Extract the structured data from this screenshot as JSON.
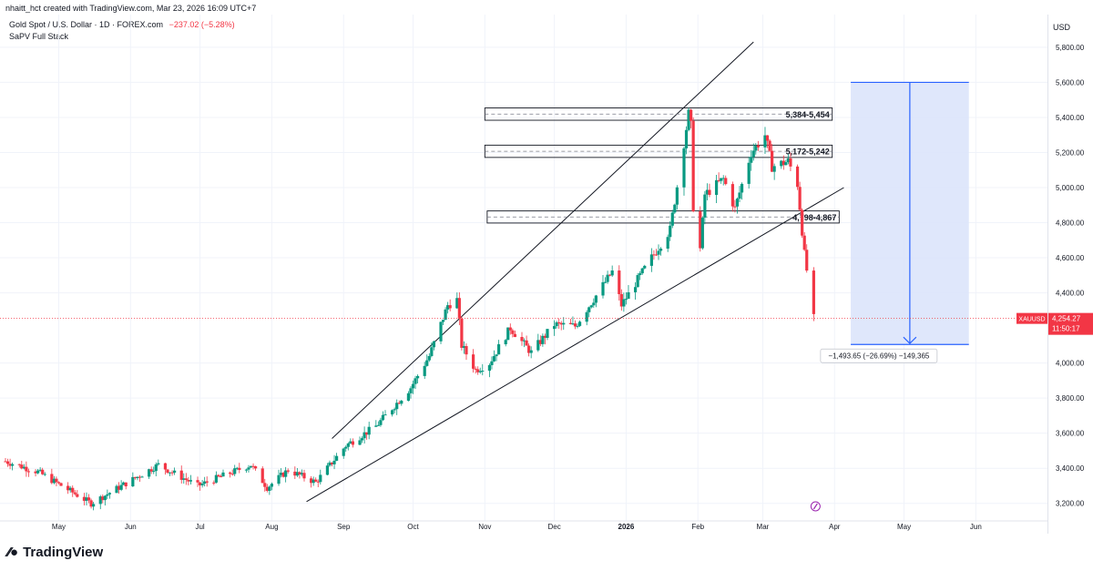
{
  "header": {
    "credit": "nhaitt_hct created with TradingView.com, Mar 23, 2026 16:09 UTC+7",
    "symbol": "Gold Spot / U.S. Dollar · 1D · FOREX.com",
    "change": "−237.02 (−5.28%)",
    "indicator": "SaPV Full Stack"
  },
  "axis": {
    "currency": "USD"
  },
  "footer": {
    "brand": "TradingView"
  },
  "colors": {
    "up": "#089981",
    "down": "#f23645",
    "measure_fill": "#dbe4fb",
    "measure_line": "#2962ff"
  },
  "chart_data": {
    "type": "candlestick",
    "title": "Gold Spot / U.S. Dollar · 1D · FOREX.com",
    "ylabel": "USD",
    "ylim": [
      3100,
      5950
    ],
    "y_ticks": [
      {
        "value": 5800,
        "label": "5,800.00"
      },
      {
        "value": 5600,
        "label": "5,600.00"
      },
      {
        "value": 5400,
        "label": "5,400.00"
      },
      {
        "value": 5200,
        "label": "5,200.00"
      },
      {
        "value": 5000,
        "label": "5,000.00"
      },
      {
        "value": 4800,
        "label": "4,800.00"
      },
      {
        "value": 4600,
        "label": "4,600.00"
      },
      {
        "value": 4400,
        "label": "4,400.00"
      },
      {
        "value": 4000,
        "label": "4,000.00"
      },
      {
        "value": 3800,
        "label": "3,800.00"
      },
      {
        "value": 3600,
        "label": "3,600.00"
      },
      {
        "value": 3400,
        "label": "3,400.00"
      },
      {
        "value": 3200,
        "label": "3,200.00"
      }
    ],
    "x_ticks": [
      {
        "date": "2025-05-01",
        "label": "May"
      },
      {
        "date": "2025-06-01",
        "label": "Jun"
      },
      {
        "date": "2025-07-01",
        "label": "Jul"
      },
      {
        "date": "2025-08-01",
        "label": "Aug"
      },
      {
        "date": "2025-09-01",
        "label": "Sep"
      },
      {
        "date": "2025-10-01",
        "label": "Oct"
      },
      {
        "date": "2025-11-01",
        "label": "Nov"
      },
      {
        "date": "2025-12-01",
        "label": "Dec"
      },
      {
        "date": "2026-01-01",
        "label": "2026"
      },
      {
        "date": "2026-02-01",
        "label": "Feb"
      },
      {
        "date": "2026-03-01",
        "label": "Mar"
      },
      {
        "date": "2026-04-01",
        "label": "Apr"
      },
      {
        "date": "2026-05-01",
        "label": "May"
      },
      {
        "date": "2026-06-01",
        "label": "Jun"
      }
    ],
    "xlim": [
      "2025-04-08",
      "2026-06-28"
    ],
    "price_path": [
      [
        "2025-04-08",
        3440
      ],
      [
        "2025-04-22",
        3380
      ],
      [
        "2025-05-15",
        3200
      ],
      [
        "2025-06-13",
        3420
      ],
      [
        "2025-06-30",
        3300
      ],
      [
        "2025-07-23",
        3420
      ],
      [
        "2025-07-30",
        3290
      ],
      [
        "2025-08-08",
        3390
      ],
      [
        "2025-08-20",
        3320
      ],
      [
        "2025-09-02",
        3530
      ],
      [
        "2025-09-15",
        3640
      ],
      [
        "2025-09-30",
        3860
      ],
      [
        "2025-10-08",
        4040
      ],
      [
        "2025-10-16",
        4330
      ],
      [
        "2025-10-20",
        4360
      ],
      [
        "2025-10-22",
        4100
      ],
      [
        "2025-10-28",
        3960
      ],
      [
        "2025-11-03",
        4000
      ],
      [
        "2025-11-12",
        4200
      ],
      [
        "2025-11-21",
        4060
      ],
      [
        "2025-12-01",
        4220
      ],
      [
        "2025-12-10",
        4210
      ],
      [
        "2025-12-26",
        4520
      ],
      [
        "2025-12-30",
        4330
      ],
      [
        "2026-01-12",
        4600
      ],
      [
        "2026-01-20",
        4760
      ],
      [
        "2026-01-28",
        5420
      ],
      [
        "2026-01-29",
        5350
      ],
      [
        "2026-01-30",
        4890
      ],
      [
        "2026-02-02",
        4650
      ],
      [
        "2026-02-04",
        4960
      ],
      [
        "2026-02-12",
        5050
      ],
      [
        "2026-02-17",
        4880
      ],
      [
        "2026-02-24",
        5200
      ],
      [
        "2026-03-02",
        5300
      ],
      [
        "2026-03-05",
        5120
      ],
      [
        "2026-03-12",
        5150
      ],
      [
        "2026-03-16",
        5020
      ],
      [
        "2026-03-19",
        4620
      ],
      [
        "2026-03-23",
        4254
      ]
    ],
    "zones": [
      {
        "label": "5,384-5,454",
        "low": 5384,
        "high": 5454,
        "from": "2025-11-01",
        "to": "2026-03-31"
      },
      {
        "label": "5,172-5,242",
        "low": 5172,
        "high": 5242,
        "from": "2025-11-01",
        "to": "2026-03-31"
      },
      {
        "label": "4,798-4,867",
        "low": 4798,
        "high": 4867,
        "from": "2025-11-02",
        "to": "2026-04-03"
      }
    ],
    "trendlines": [
      {
        "name": "upper",
        "from": [
          "2025-08-27",
          3570
        ],
        "to": [
          "2026-02-25",
          5830
        ]
      },
      {
        "name": "lower",
        "from": [
          "2025-08-16",
          3210
        ],
        "to": [
          "2026-04-05",
          5000
        ]
      }
    ],
    "measure": {
      "from_date": "2026-04-08",
      "to_date": "2026-05-29",
      "top": 5600,
      "bottom": 4106,
      "label": "−1,493.65 (−26.69%) −149,365"
    },
    "last_price": {
      "value": 4254.27,
      "symbol_label": "XAUUSD",
      "price_label": "4,254.27",
      "countdown": "11:50:17"
    }
  }
}
